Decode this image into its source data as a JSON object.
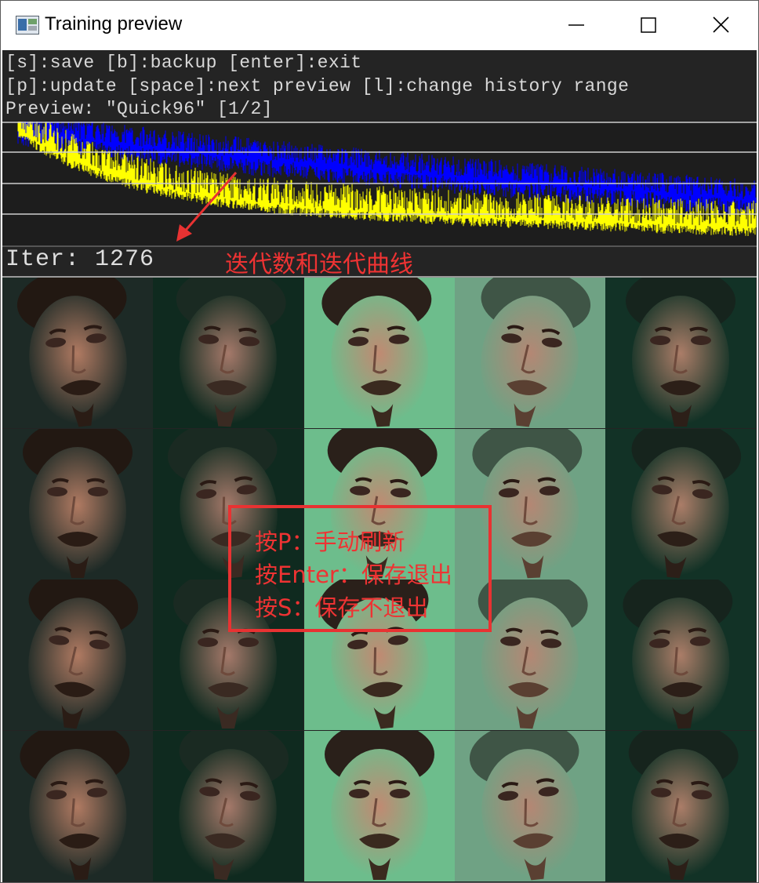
{
  "window": {
    "title": "Training preview",
    "icon": "app-preview-icon",
    "controls": {
      "minimize": "minimize-icon",
      "maximize": "maximize-icon",
      "close": "close-icon"
    }
  },
  "console": {
    "line1": "[s]:save [b]:backup [enter]:exit",
    "line2": "[p]:update [space]:next preview [l]:change history range",
    "line3": "Preview: \"Quick96\" [1/2]"
  },
  "graph": {
    "series_colors": {
      "source_loss": "#ffff00",
      "destination_loss": "#0000ff"
    },
    "grid_color": "#cfcfcf"
  },
  "iteration": {
    "label": "Iter: 1276",
    "annotation": "迭代数和迭代曲线",
    "annotation_color": "#ee3333"
  },
  "preview_grid": {
    "columns": [
      "source",
      "source-reconstruction",
      "destination",
      "destination-reconstruction",
      "swapped"
    ],
    "rows": 4
  },
  "help": {
    "line1": "按P：手动刷新",
    "line2": "按Enter：保存退出",
    "line3": "按S：保存不退出"
  }
}
